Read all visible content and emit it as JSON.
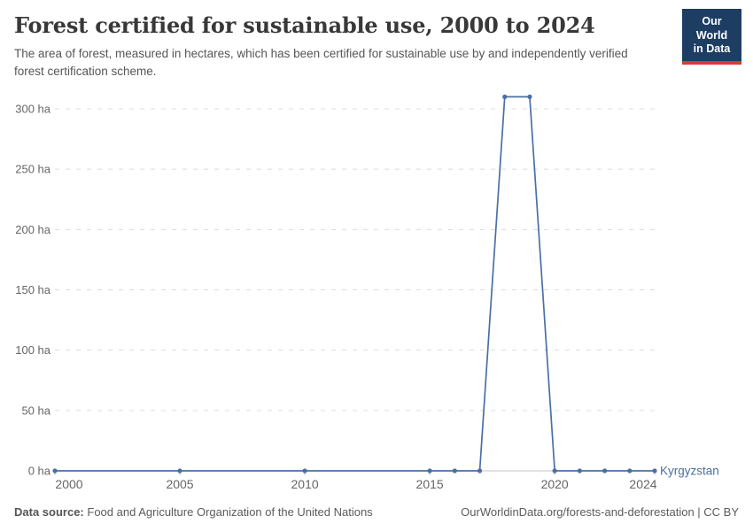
{
  "header": {
    "title": "Forest certified for sustainable use, 2000 to 2024",
    "subtitle": "The area of forest, measured in hectares, which has been certified for sustainable use by and independently verified forest certification scheme.",
    "logo": {
      "line1": "Our World",
      "line2": "in Data",
      "bg_color": "#1d3d63",
      "accent_color": "#d93a34"
    }
  },
  "chart_data": {
    "type": "line",
    "title": "Forest certified for sustainable use, 2000 to 2024",
    "xlabel": "",
    "ylabel": "",
    "x": [
      2000,
      2005,
      2010,
      2015,
      2016,
      2017,
      2018,
      2019,
      2020,
      2021,
      2022,
      2023,
      2024
    ],
    "series": [
      {
        "name": "Kyrgyzstan",
        "color": "#4a6fa5",
        "values": [
          0,
          0,
          0,
          0,
          0,
          0,
          310,
          310,
          0,
          0,
          0,
          0,
          0
        ]
      }
    ],
    "xlim": [
      2000,
      2024
    ],
    "ylim": [
      0,
      300
    ],
    "grid": "horizontal-dashed",
    "legend_position": "right-of-line-end",
    "yticks": [
      {
        "value": 0,
        "label": "0 ha"
      },
      {
        "value": 50,
        "label": "50 ha"
      },
      {
        "value": 100,
        "label": "100 ha"
      },
      {
        "value": 150,
        "label": "150 ha"
      },
      {
        "value": 200,
        "label": "200 ha"
      },
      {
        "value": 250,
        "label": "250 ha"
      },
      {
        "value": 300,
        "label": "300 ha"
      }
    ],
    "xticks": [
      {
        "value": 2000,
        "label": "2000"
      },
      {
        "value": 2005,
        "label": "2005"
      },
      {
        "value": 2010,
        "label": "2010"
      },
      {
        "value": 2015,
        "label": "2015"
      },
      {
        "value": 2020,
        "label": "2020"
      },
      {
        "value": 2024,
        "label": "2024"
      }
    ],
    "grid_color": "#dcdcdc",
    "axis_line_color": "#c3c3c3",
    "tick_label_color": "#666666"
  },
  "footer": {
    "source_label": "Data source:",
    "source_text": "Food and Agriculture Organization of the United Nations",
    "attribution": "OurWorldinData.org/forests-and-deforestation | CC BY"
  }
}
